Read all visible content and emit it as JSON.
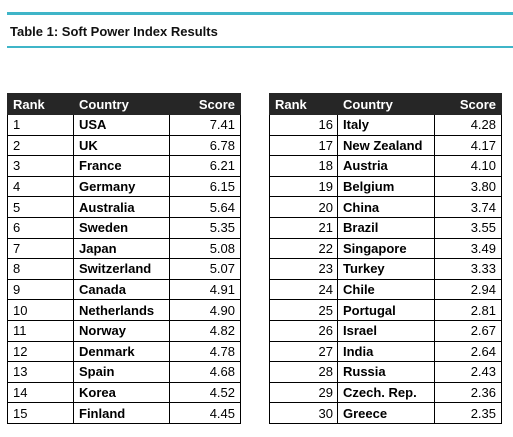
{
  "title": "Table 1: Soft Power Index Results",
  "headers": {
    "rank": "Rank",
    "country": "Country",
    "score": "Score"
  },
  "left_rows": [
    {
      "rank": "1",
      "country": "USA",
      "score": "7.41"
    },
    {
      "rank": "2",
      "country": "UK",
      "score": "6.78"
    },
    {
      "rank": "3",
      "country": "France",
      "score": "6.21"
    },
    {
      "rank": "4",
      "country": "Germany",
      "score": "6.15"
    },
    {
      "rank": "5",
      "country": "Australia",
      "score": "5.64"
    },
    {
      "rank": "6",
      "country": "Sweden",
      "score": "5.35"
    },
    {
      "rank": "7",
      "country": "Japan",
      "score": "5.08"
    },
    {
      "rank": "8",
      "country": "Switzerland",
      "score": "5.07"
    },
    {
      "rank": "9",
      "country": "Canada",
      "score": "4.91"
    },
    {
      "rank": "10",
      "country": "Netherlands",
      "score": "4.90"
    },
    {
      "rank": "11",
      "country": "Norway",
      "score": "4.82"
    },
    {
      "rank": "12",
      "country": "Denmark",
      "score": "4.78"
    },
    {
      "rank": "13",
      "country": "Spain",
      "score": "4.68"
    },
    {
      "rank": "14",
      "country": "Korea",
      "score": "4.52"
    },
    {
      "rank": "15",
      "country": "Finland",
      "score": "4.45"
    }
  ],
  "right_rows": [
    {
      "rank": "16",
      "country": "Italy",
      "score": "4.28"
    },
    {
      "rank": "17",
      "country": "New Zealand",
      "score": "4.17"
    },
    {
      "rank": "18",
      "country": "Austria",
      "score": "4.10"
    },
    {
      "rank": "19",
      "country": "Belgium",
      "score": "3.80"
    },
    {
      "rank": "20",
      "country": "China",
      "score": "3.74"
    },
    {
      "rank": "21",
      "country": "Brazil",
      "score": "3.55"
    },
    {
      "rank": "22",
      "country": "Singapore",
      "score": "3.49"
    },
    {
      "rank": "23",
      "country": "Turkey",
      "score": "3.33"
    },
    {
      "rank": "24",
      "country": "Chile",
      "score": "2.94"
    },
    {
      "rank": "25",
      "country": "Portugal",
      "score": "2.81"
    },
    {
      "rank": "26",
      "country": "Israel",
      "score": "2.67"
    },
    {
      "rank": "27",
      "country": "India",
      "score": "2.64"
    },
    {
      "rank": "28",
      "country": "Russia",
      "score": "2.43"
    },
    {
      "rank": "29",
      "country": "Czech. Rep.",
      "score": "2.36"
    },
    {
      "rank": "30",
      "country": "Greece",
      "score": "2.35"
    }
  ],
  "colors": {
    "accent_rule": "#3fb5c8",
    "header_bg": "#262626",
    "header_text": "#ffffff"
  }
}
